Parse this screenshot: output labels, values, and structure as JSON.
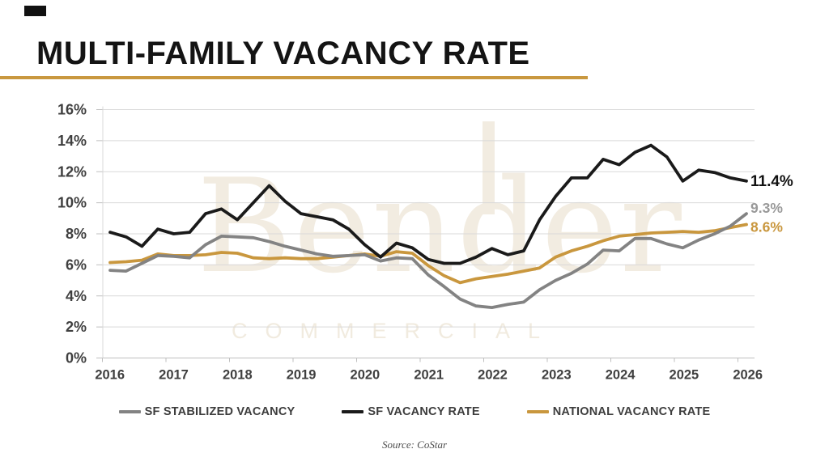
{
  "header": {
    "title": "MULTI-FAMILY VACANCY RATE",
    "accent_color": "#c9983f"
  },
  "watermark": {
    "line1": "Bender",
    "line2": "COMMERCIAL",
    "color": "#f2ece1"
  },
  "chart_data": {
    "type": "line",
    "title": "MULTI-FAMILY VACANCY RATE",
    "frequency": "quarterly",
    "x_range": [
      2016,
      2026
    ],
    "grid": true,
    "legend_position": "bottom",
    "x_axis": {
      "labels": [
        "2016",
        "2017",
        "2018",
        "2019",
        "2020",
        "2021",
        "2022",
        "2023",
        "2024",
        "2025",
        "2026"
      ]
    },
    "y_axis": {
      "min": 0,
      "max": 16,
      "step": 2,
      "labels": [
        "0%",
        "2%",
        "4%",
        "6%",
        "8%",
        "10%",
        "12%",
        "14%",
        "16%"
      ]
    },
    "series": [
      {
        "name": "SF STABILIZED VACANCY",
        "color": "#838383",
        "end_label": "9.3%",
        "end_label_color": "#999999",
        "values": [
          5.65,
          5.6,
          6.1,
          6.6,
          6.55,
          6.45,
          7.3,
          7.85,
          7.8,
          7.75,
          7.5,
          7.2,
          6.95,
          6.7,
          6.55,
          6.6,
          6.65,
          6.25,
          6.45,
          6.4,
          5.35,
          4.6,
          3.8,
          3.35,
          3.25,
          3.45,
          3.6,
          4.4,
          5.0,
          5.45,
          6.05,
          6.95,
          6.9,
          7.7,
          7.7,
          7.35,
          7.1,
          7.6,
          8.0,
          8.5,
          9.3
        ]
      },
      {
        "name": "SF VACANCY RATE",
        "color": "#1a1a1a",
        "end_label": "11.4%",
        "end_label_color": "#111111",
        "values": [
          8.1,
          7.8,
          7.2,
          8.3,
          8.0,
          8.1,
          9.3,
          9.6,
          8.9,
          10.0,
          11.1,
          10.1,
          9.3,
          9.1,
          8.9,
          8.3,
          7.3,
          6.5,
          7.4,
          7.1,
          6.35,
          6.1,
          6.1,
          6.5,
          7.05,
          6.65,
          6.9,
          8.9,
          10.4,
          11.6,
          11.6,
          12.8,
          12.45,
          13.25,
          13.7,
          12.95,
          11.4,
          12.1,
          11.95,
          11.6,
          11.4
        ]
      },
      {
        "name": "NATIONAL VACANCY RATE",
        "color": "#c9973e",
        "end_label": "8.6%",
        "end_label_color": "#c9973e",
        "values": [
          6.15,
          6.2,
          6.3,
          6.7,
          6.6,
          6.6,
          6.65,
          6.8,
          6.75,
          6.45,
          6.4,
          6.45,
          6.4,
          6.4,
          6.5,
          6.6,
          6.7,
          6.55,
          6.85,
          6.75,
          5.95,
          5.3,
          4.85,
          5.1,
          5.25,
          5.4,
          5.6,
          5.8,
          6.5,
          6.9,
          7.2,
          7.55,
          7.85,
          7.95,
          8.05,
          8.1,
          8.15,
          8.1,
          8.2,
          8.4,
          8.6
        ]
      }
    ]
  },
  "source": {
    "text": "Source: CoStar"
  }
}
